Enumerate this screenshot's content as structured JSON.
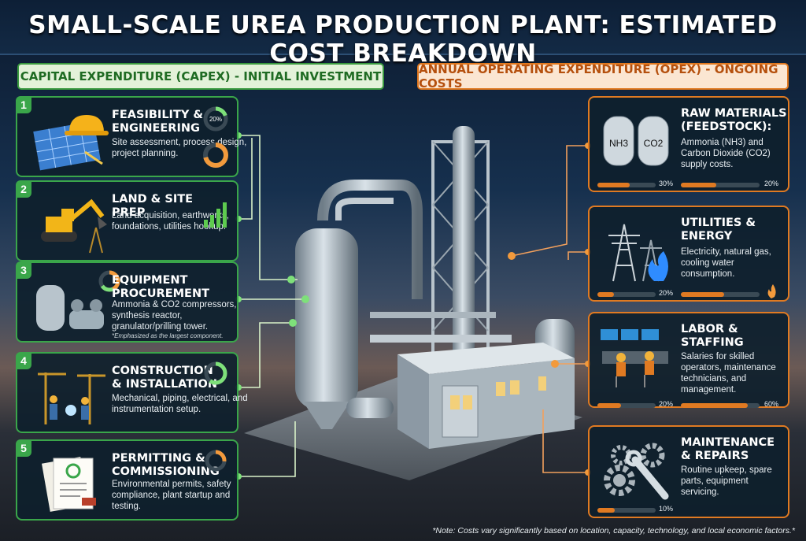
{
  "title": "SMALL-SCALE UREA PRODUCTION PLANT: ESTIMATED COST BREAKDOWN",
  "capex_banner": "CAPITAL EXPENDITURE (CAPEX) - INITIAL INVESTMENT",
  "opex_banner": "ANNUAL OPERATING EXPENDITURE (OPEX) - ONGOING COSTS",
  "capex": [
    {
      "num": "1",
      "title": "FEASIBILITY & ENGINEERING",
      "desc": "Site assessment, process design, project planning.",
      "percent_label": "20%",
      "icon": "blueprint-hardhat-icon"
    },
    {
      "num": "2",
      "title": "LAND & SITE PREP",
      "desc": "Land acquisition, earthworks, foundations, utilities hookup.",
      "icon": "excavator-icon"
    },
    {
      "num": "3",
      "title": "EQUIPMENT PROCUREMENT",
      "desc": "Ammonia & CO2 compressors, synthesis reactor, granulator/prilling tower.",
      "note": "*Emphasized as the largest component.",
      "icon": "compressor-icon"
    },
    {
      "num": "4",
      "title": "CONSTRUCTION & INSTALLATION",
      "desc": "Mechanical, piping, electrical, and instrumentation setup.",
      "icon": "construction-workers-icon"
    },
    {
      "num": "5",
      "title": "PERMITTING & COMMISSIONING",
      "desc": "Environmental permits, safety compliance, plant startup and testing.",
      "icon": "permit-documents-icon"
    }
  ],
  "opex": [
    {
      "title": "RAW MATERIALS (FEEDSTOCK):",
      "desc": "Ammonia (NH3) and Carbon Dioxide (CO2) supply costs.",
      "tank_labels": [
        "NH3",
        "CO2"
      ],
      "bars": [
        {
          "label": "30%",
          "value": 0.55
        },
        {
          "label": "20%",
          "value": 0.45
        }
      ],
      "icon": "feedstock-tanks-icon"
    },
    {
      "title": "UTILITIES & ENERGY",
      "desc": "Electricity, natural gas, cooling water consumption.",
      "bars": [
        {
          "label": "20%",
          "value": 0.28
        },
        {
          "label": "",
          "value": 0.55
        }
      ],
      "icon": "power-tower-flame-icon"
    },
    {
      "title": "LABOR & STAFFING",
      "desc": "Salaries for skilled operators, maintenance technicians, and management.",
      "bars": [
        {
          "label": "20%",
          "value": 0.4
        },
        {
          "label": "60%",
          "value": 0.85
        }
      ],
      "icon": "control-room-icon"
    },
    {
      "title": "MAINTENANCE & REPAIRS",
      "desc": "Routine upkeep, spare parts, equipment servicing.",
      "bars": [
        {
          "label": "10%",
          "value": 0.3
        }
      ],
      "icon": "gears-wrench-icon"
    }
  ],
  "footnote": "*Note: Costs vary significantly based on location, capacity, technology, and local economic factors.*",
  "colors": {
    "capex": "#3aa64a",
    "opex": "#e07a22"
  }
}
